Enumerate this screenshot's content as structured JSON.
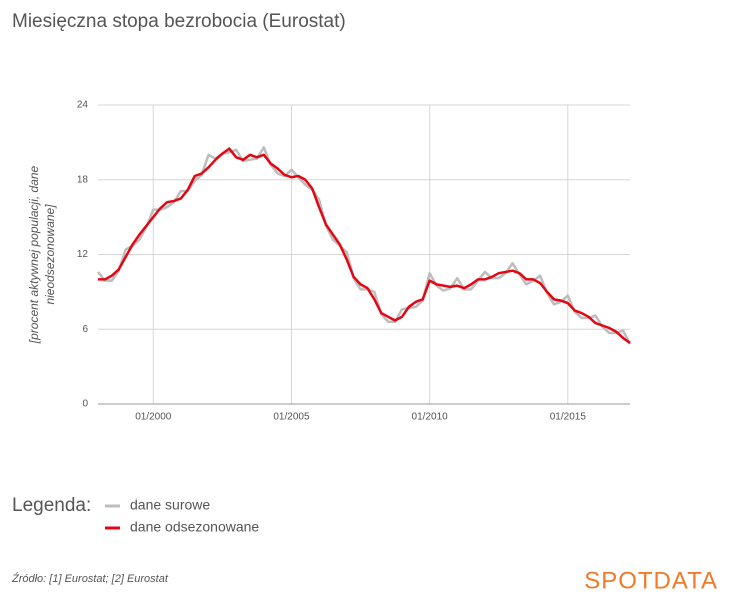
{
  "chart_data": {
    "type": "line",
    "title": "Miesięczna stopa bezrobocia (Eurostat)",
    "ylabel": [
      "[procent aktywnej populacji, dane",
      "nieodsezonowane]"
    ],
    "x": [
      "1998-01",
      "1998-04",
      "1998-07",
      "1998-10",
      "1999-01",
      "1999-04",
      "1999-07",
      "1999-10",
      "2000-01",
      "2000-04",
      "2000-07",
      "2000-10",
      "2001-01",
      "2001-04",
      "2001-07",
      "2001-10",
      "2002-01",
      "2002-04",
      "2002-07",
      "2002-10",
      "2003-01",
      "2003-04",
      "2003-07",
      "2003-10",
      "2004-01",
      "2004-04",
      "2004-07",
      "2004-10",
      "2005-01",
      "2005-04",
      "2005-07",
      "2005-10",
      "2006-01",
      "2006-04",
      "2006-07",
      "2006-10",
      "2007-01",
      "2007-04",
      "2007-07",
      "2007-10",
      "2008-01",
      "2008-04",
      "2008-07",
      "2008-10",
      "2009-01",
      "2009-04",
      "2009-07",
      "2009-10",
      "2010-01",
      "2010-04",
      "2010-07",
      "2010-10",
      "2011-01",
      "2011-04",
      "2011-07",
      "2011-10",
      "2012-01",
      "2012-04",
      "2012-07",
      "2012-10",
      "2013-01",
      "2013-04",
      "2013-07",
      "2013-10",
      "2014-01",
      "2014-04",
      "2014-07",
      "2014-10",
      "2015-01",
      "2015-04",
      "2015-07",
      "2015-10",
      "2016-01",
      "2016-04",
      "2016-07",
      "2016-10",
      "2017-01",
      "2017-04"
    ],
    "series": [
      {
        "name": "dane surowe",
        "color": "#bdbdbd",
        "width": 2.5,
        "values": [
          10.6,
          9.9,
          9.9,
          10.7,
          12.4,
          12.7,
          13.2,
          14.2,
          15.6,
          15.6,
          15.8,
          16.2,
          17.1,
          17.1,
          17.9,
          18.4,
          20.0,
          19.7,
          20.1,
          20.2,
          20.4,
          19.5,
          19.6,
          19.7,
          20.6,
          19.2,
          18.5,
          18.3,
          18.8,
          18.2,
          17.6,
          17.2,
          16.4,
          14.3,
          13.2,
          12.7,
          12.2,
          10.1,
          9.2,
          9.2,
          9.0,
          7.2,
          6.6,
          6.6,
          7.6,
          7.7,
          7.8,
          8.3,
          10.5,
          9.5,
          9.1,
          9.3,
          10.1,
          9.2,
          9.2,
          9.9,
          10.6,
          10.1,
          10.1,
          10.5,
          11.3,
          10.4,
          9.6,
          9.9,
          10.3,
          8.9,
          8.0,
          8.2,
          8.7,
          7.4,
          6.9,
          6.9,
          7.1,
          6.2,
          5.7,
          5.7,
          5.9,
          4.8
        ]
      },
      {
        "name": "dane odsezonowane",
        "color": "#e30613",
        "width": 2.5,
        "values": [
          10.0,
          10.0,
          10.3,
          10.8,
          11.8,
          12.8,
          13.6,
          14.3,
          15.0,
          15.7,
          16.2,
          16.3,
          16.5,
          17.2,
          18.3,
          18.5,
          19.0,
          19.6,
          20.1,
          20.5,
          19.8,
          19.6,
          20.0,
          19.8,
          20.0,
          19.3,
          18.9,
          18.4,
          18.2,
          18.3,
          18.0,
          17.3,
          15.8,
          14.4,
          13.6,
          12.8,
          11.6,
          10.2,
          9.6,
          9.3,
          8.4,
          7.3,
          7.0,
          6.7,
          7.0,
          7.8,
          8.2,
          8.4,
          9.9,
          9.6,
          9.5,
          9.4,
          9.5,
          9.3,
          9.6,
          10.0,
          10.0,
          10.2,
          10.5,
          10.6,
          10.7,
          10.5,
          10.0,
          10.0,
          9.7,
          9.0,
          8.4,
          8.3,
          8.1,
          7.5,
          7.3,
          7.0,
          6.5,
          6.3,
          6.1,
          5.8,
          5.3,
          4.9
        ]
      }
    ],
    "xlim": [
      "1998-01",
      "2017-04"
    ],
    "xticks": [
      {
        "value": "2000-01",
        "label": "01/2000"
      },
      {
        "value": "2005-01",
        "label": "01/2005"
      },
      {
        "value": "2010-01",
        "label": "01/2010"
      },
      {
        "value": "2015-01",
        "label": "01/2015"
      }
    ],
    "ylim": [
      0,
      24
    ],
    "yticks": [
      0,
      6,
      12,
      18,
      24
    ],
    "grid": true,
    "legend_title": "Legenda:",
    "source": "Źródło: [1] Eurostat; [2] Eurostat",
    "brand": "SPOTDATA"
  }
}
